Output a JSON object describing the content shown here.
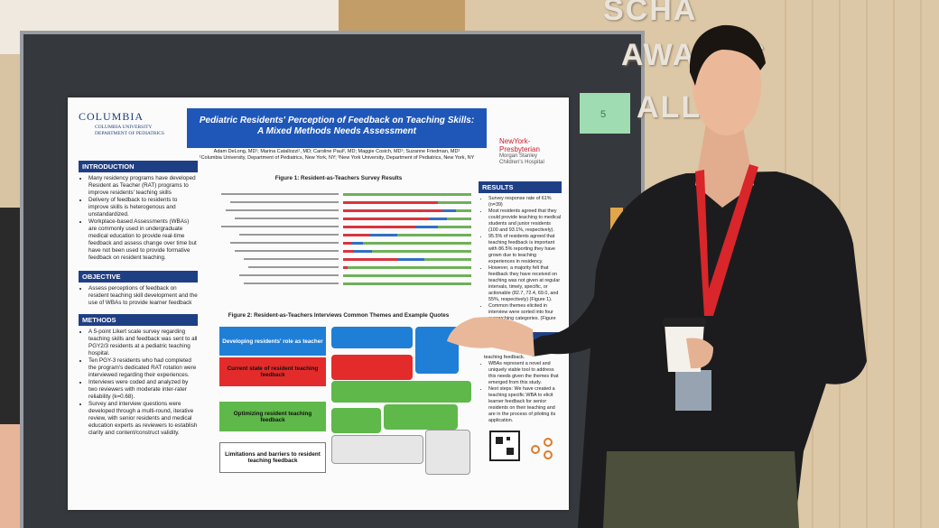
{
  "wall_sign": [
    "SCHA",
    "AWARDS",
    "ALL"
  ],
  "sticky_note": "5",
  "poster": {
    "logo_left": {
      "name": "COLUMBIA",
      "lines": [
        "COLUMBIA UNIVERSITY",
        "DEPARTMENT OF PEDIATRICS"
      ]
    },
    "title": [
      "Pediatric Residents' Perception of Feedback on Teaching Skills:",
      "A Mixed Methods Needs Assessment"
    ],
    "authors": [
      "Adam DeLong, MD¹; Marina Catallozzi¹, MD; Caroline Paul², MD; Maggie Cosich, MD¹; Suzanne Friedman, MD¹",
      "¹Columbia University, Department of Pediatrics, New York, NY; ²New York University, Department of Pediatrics, New York, NY"
    ],
    "logo_right": [
      "NewYork-",
      "Presbyterian",
      "Morgan Stanley",
      "Children's Hospital"
    ],
    "introduction": {
      "heading": "INTRODUCTION",
      "bullets": [
        "Many residency programs have developed Resident as Teacher (RAT) programs to improve residents' teaching skills",
        "Delivery of feedback to residents to improve skills is heterogenous and unstandardized.",
        "Workplace-based Assessments (WBAs) are commonly used in undergraduate medical education to provide real-time feedback and assess change over time but have not been used to provide formative feedback on resident teaching."
      ]
    },
    "objective": {
      "heading": "OBJECTIVE",
      "bullets": [
        "Assess perceptions of feedback on resident teaching skill development and the use of WBAs to provide learner feedback"
      ]
    },
    "methods": {
      "heading": "METHODS",
      "bullets": [
        "A 5-point Likert scale survey regarding teaching skills and feedback was sent to all PGY2/3 residents at a pediatric teaching hospital.",
        "Ten PGY-3 residents who had completed the program's dedicated RAT rotation were interviewed regarding their experiences.",
        "Interviews were coded and analyzed by two reviewers with moderate inter-rater reliability (k=0.68).",
        "Survey and interview questions were developed through a multi-round, iterative review, with senior residents and medical education experts as reviewers to establish clarity and content/construct validity."
      ]
    },
    "results": {
      "heading": "RESULTS",
      "bullets": [
        "Survey response rate of 61% (n=39)",
        "Most residents agreed that they could provide teaching to medical students and junior residents (100 and 93.1%, respectively).",
        "95.5% of residents agreed that teaching feedback is important with 86.5% reporting they have grown due to teaching experiences in residency.",
        "However, a majority felt that feedback they have received on teaching was not given at regular intervals, timely, specific, or actionable (82.7, 72.4, 69.0, and 55%, respectively) (Figure 1).",
        "Common themes elicited in interview were sorted into four overarching categories. (Figure 2)."
      ]
    },
    "conclusions": {
      "bullets": [
        "teaching feedback.",
        "WBAs represent a novel and uniquely viable tool to address this needs given the themes that emerged from this study.",
        "Next steps: We have created a teaching specific WBA to elicit learner feedback for senior residents on their teaching and are in the process of piloting its application."
      ]
    },
    "figure1_title": "Figure 1: Resident-as-Teachers Survey Results",
    "figure2_title": "Figure 2: Resident-as-Teachers Interviews Common Themes and Example Quotes",
    "themes": [
      "Developing residents' role as teacher",
      "Current state of resident teaching feedback",
      "Optimizing resident teaching feedback",
      "Limitations and barriers to resident teaching feedback"
    ]
  }
}
